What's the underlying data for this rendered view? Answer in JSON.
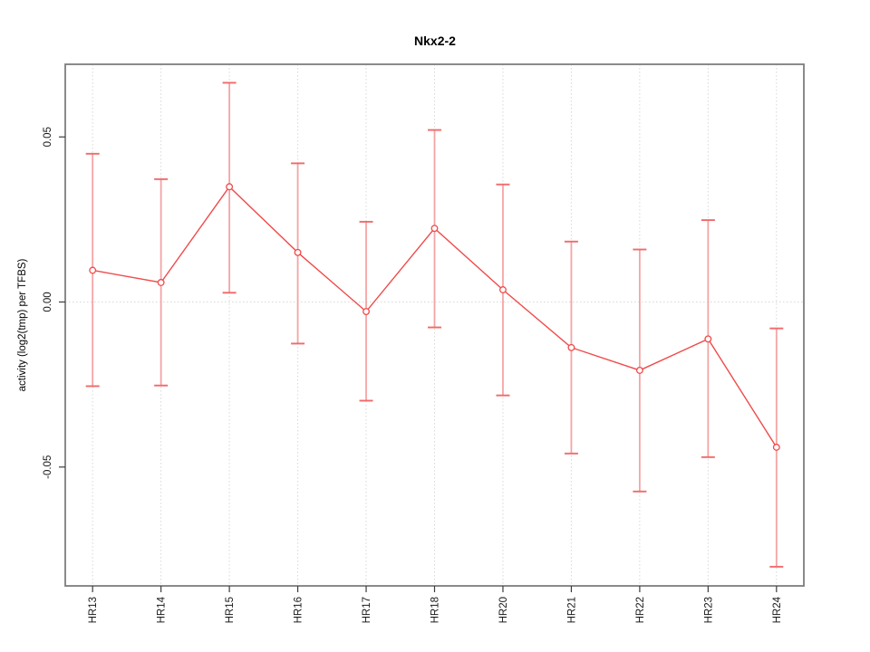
{
  "chart_data": {
    "type": "line",
    "subtype": "points-with-error-bars",
    "title": "Nkx2-2",
    "xlabel": "",
    "ylabel": "activity (log2(tmp) per TFBS)",
    "categories": [
      "HR13",
      "HR14",
      "HR15",
      "HR16",
      "HR17",
      "HR18",
      "HR20",
      "HR21",
      "HR22",
      "HR23",
      "HR24"
    ],
    "values": [
      0.0096,
      0.0059,
      0.0349,
      0.015,
      -0.0029,
      0.0223,
      0.0037,
      -0.0138,
      -0.0207,
      -0.0112,
      -0.044
    ],
    "error_upper": [
      0.0449,
      0.0372,
      0.0664,
      0.042,
      0.0243,
      0.0521,
      0.0356,
      0.0183,
      0.0159,
      0.0248,
      -0.008
    ],
    "error_lower": [
      -0.0255,
      -0.0253,
      0.0028,
      -0.0126,
      -0.0299,
      -0.0077,
      -0.0283,
      -0.0459,
      -0.0574,
      -0.047,
      -0.0802
    ],
    "yticks": [
      0.05,
      0.0,
      -0.05
    ],
    "ytick_labels": [
      "0.05",
      "0.00",
      "-0.05"
    ],
    "ylim": [
      -0.086,
      0.072
    ],
    "marker": "open-circle",
    "legend": "none",
    "grid": {
      "vertical": "dotted at each category",
      "horizontal": "dotted at zero only"
    },
    "colors": {
      "line": "#f04a4a",
      "marker": "#f04a4a",
      "errorbar_stem": "#f5a4a4",
      "errorbar_cap": "#f06a6a",
      "gridline": "#d8d8d8",
      "plot_border": "#7e7e7e",
      "tick": "#3c3c3c",
      "text": "#000000",
      "background": "#ffffff"
    }
  }
}
